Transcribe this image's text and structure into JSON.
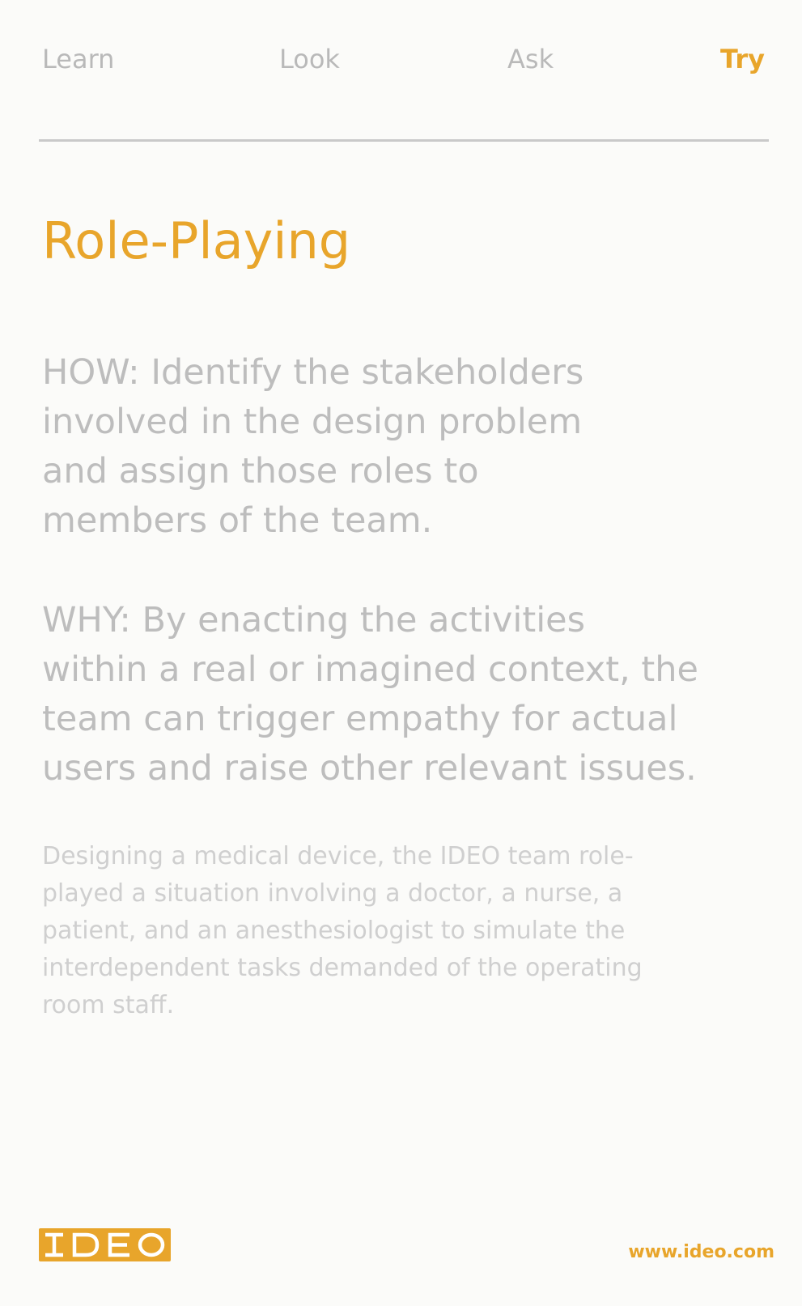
{
  "nav": {
    "tabs": [
      {
        "label": "Learn",
        "active": false
      },
      {
        "label": "Look",
        "active": false
      },
      {
        "label": "Ask",
        "active": false
      },
      {
        "label": "Try",
        "active": true
      }
    ]
  },
  "colors": {
    "accent": "#e8a52b",
    "inactive_tab": "#b9b9b9",
    "body_text": "#bdbdbd",
    "example_text": "#cfcfcf",
    "background": "#fbfbf9",
    "rule": "#c9c9c9"
  },
  "card": {
    "title": "Role-Playing",
    "how_lines": [
      "HOW: Identify the stakeholders",
      "involved in the design problem",
      "and assign those roles to",
      "members of the team."
    ],
    "why_lines": [
      "WHY: By enacting the activities",
      "within a real or imagined context, the",
      "team can trigger empathy for actual",
      "users and raise other relevant issues."
    ],
    "example_lines": [
      "Designing a medical device, the IDEO team role-",
      "played a situation involving a doctor, a nurse, a",
      "patient, and an anesthesiologist to simulate the",
      "interdependent tasks demanded of the operating",
      "room staff."
    ]
  },
  "footer": {
    "logo_text": "IDEO",
    "url": "www.ideo.com"
  }
}
